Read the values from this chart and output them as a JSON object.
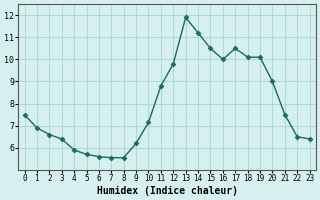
{
  "x": [
    0,
    1,
    2,
    3,
    4,
    5,
    6,
    7,
    8,
    9,
    10,
    11,
    12,
    13,
    14,
    15,
    16,
    17,
    18,
    19,
    20,
    21,
    22,
    23
  ],
  "y": [
    7.5,
    6.9,
    6.6,
    6.4,
    5.9,
    5.7,
    5.6,
    5.55,
    5.55,
    6.2,
    7.15,
    8.8,
    9.8,
    11.9,
    11.2,
    10.5,
    10.0,
    10.5,
    10.1,
    10.1,
    9.0,
    7.5,
    6.5,
    6.4
  ],
  "xlabel": "Humidex (Indice chaleur)",
  "xlim": [
    -0.5,
    23.5
  ],
  "ylim": [
    5.0,
    12.5
  ],
  "yticks": [
    6,
    7,
    8,
    9,
    10,
    11,
    12
  ],
  "xticks": [
    0,
    1,
    2,
    3,
    4,
    5,
    6,
    7,
    8,
    9,
    10,
    11,
    12,
    13,
    14,
    15,
    16,
    17,
    18,
    19,
    20,
    21,
    22,
    23
  ],
  "line_color": "#1a6b5a",
  "bg_color": "#d6f0ef",
  "grid_color": "#b0d8d5"
}
